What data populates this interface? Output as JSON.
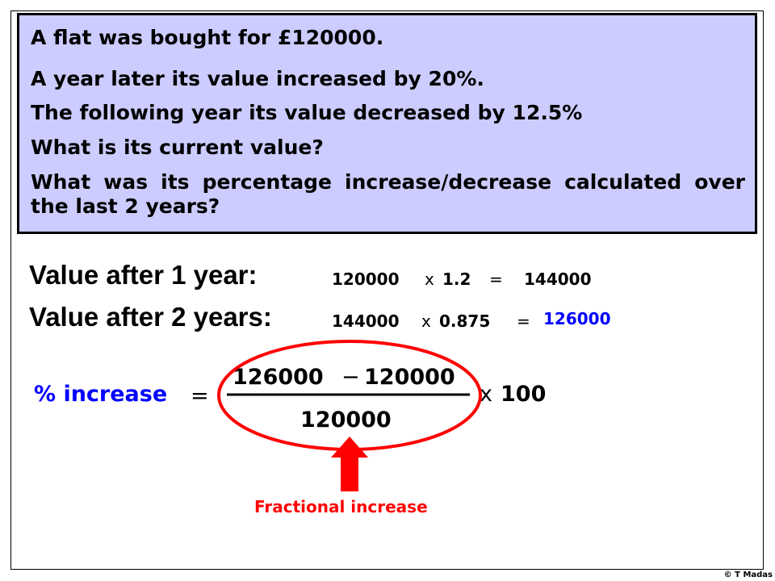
{
  "question": {
    "lines": [
      "A flat was bought for £120000.",
      "A year later its value increased by 20%.",
      "The following year its value decreased by 12.5%",
      "What is its current value?",
      "What was its percentage increase/decrease calculated over the last 2 years?"
    ]
  },
  "working": {
    "year1": {
      "label": "Value after 1 year:",
      "value": "120000",
      "times": "x",
      "factor": "1.2",
      "equals": "=",
      "result": "144000"
    },
    "year2": {
      "label": "Value after 2 years:",
      "value": "144000",
      "times": "x",
      "factor": "0.875",
      "equals": "=",
      "result": "126000"
    }
  },
  "percent": {
    "label": "% increase",
    "equals": "=",
    "num_a": "126000",
    "minus": "−",
    "num_b": "120000",
    "denominator": "120000",
    "times": "x",
    "hundred": "100"
  },
  "annotation": {
    "text": "Fractional increase"
  },
  "copyright": "© T Madas",
  "colors": {
    "box": "#ccccff",
    "blue": "#0000ff",
    "red": "#ff0000"
  }
}
